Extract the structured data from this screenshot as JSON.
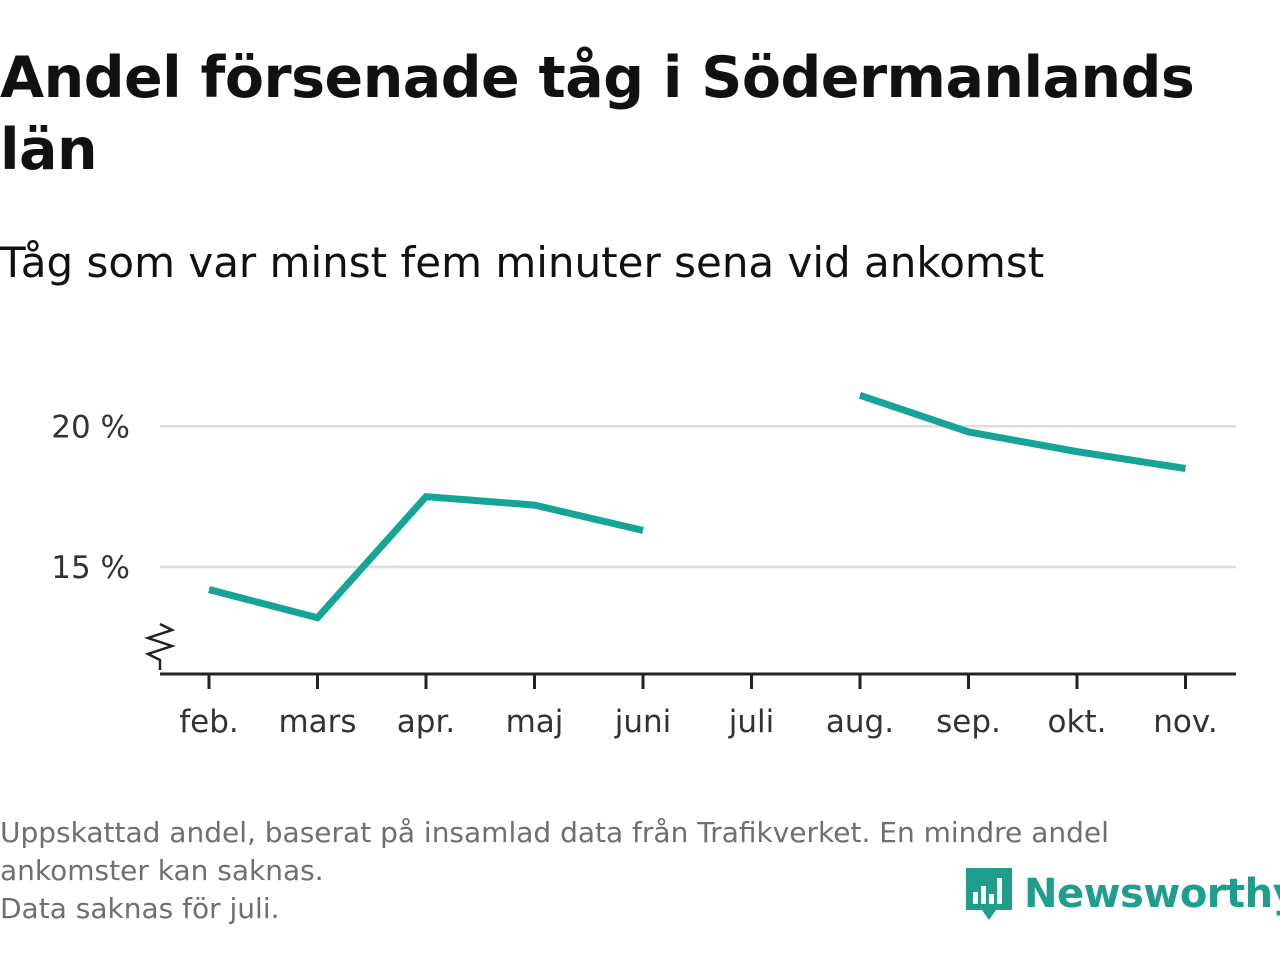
{
  "title": "Andel försenade tåg i Södermanlands län",
  "subtitle": "Tåg som var minst fem minuter sena vid ankomst",
  "footer": {
    "line1": "Uppskattad andel, baserat på insamlad data från Trafikverket. En mindre andel",
    "line2": "ankomster kan saknas.",
    "line3": "Data saknas för juli."
  },
  "logo": {
    "text": "Newsworthy",
    "icon": "newsworthy-logo-icon",
    "color": "#1f9e8e"
  },
  "chart_data": {
    "type": "line",
    "categories": [
      "feb.",
      "mars",
      "apr.",
      "maj",
      "juni",
      "juli",
      "aug.",
      "sep.",
      "okt.",
      "nov."
    ],
    "series": [
      {
        "values": [
          14.2,
          13.2,
          17.5,
          17.2,
          16.3,
          null,
          21.1,
          19.8,
          19.1,
          18.5
        ],
        "color": "#15a496"
      }
    ],
    "y_ticks": [
      {
        "value": 15,
        "label": "15 %"
      },
      {
        "value": 20,
        "label": "20 %"
      }
    ],
    "ylim": [
      11.2,
      22
    ],
    "y_axis_break": true,
    "grid": true
  }
}
